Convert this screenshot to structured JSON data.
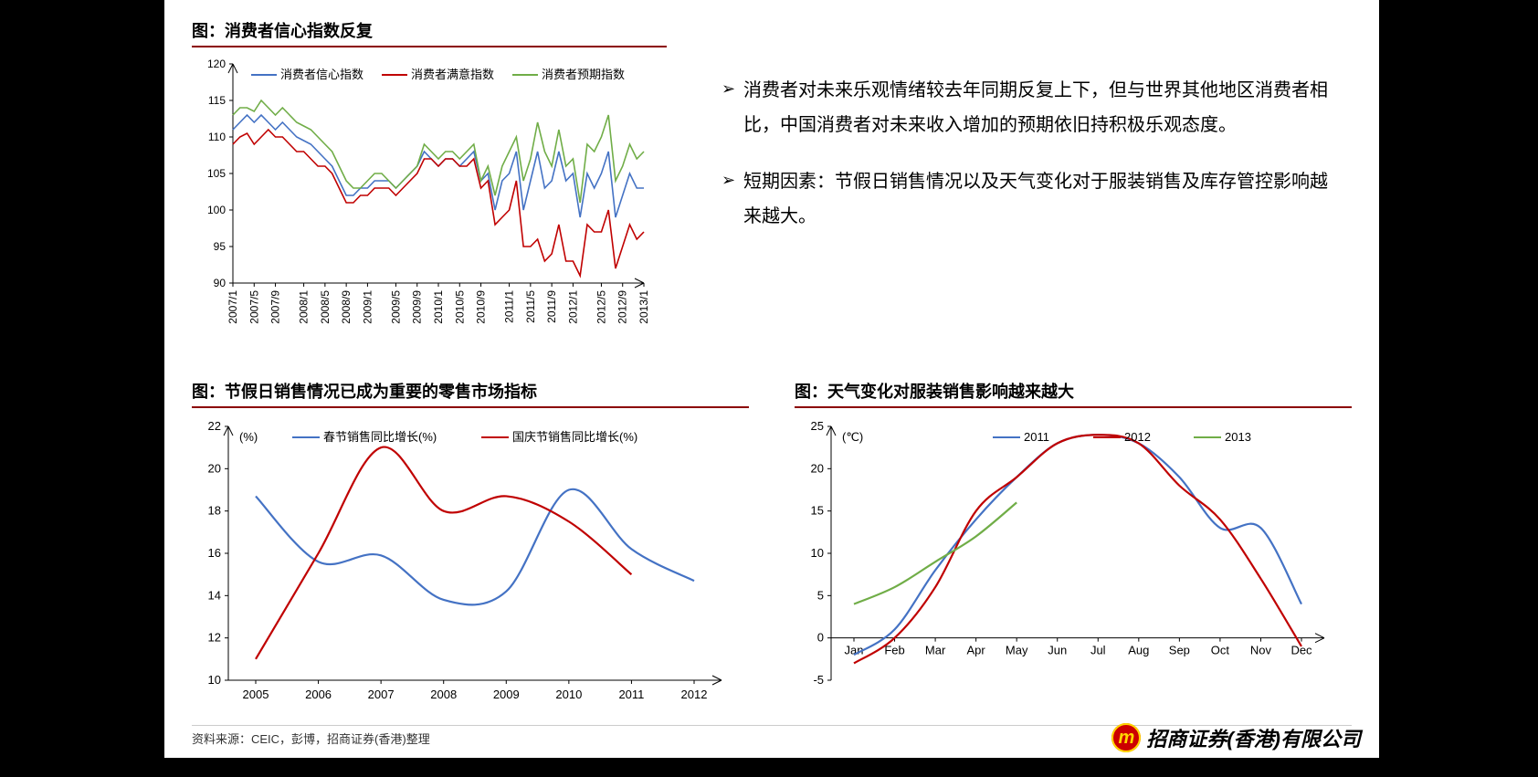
{
  "chart1": {
    "title": "图：消费者信心指数反复",
    "type": "line",
    "ylim": [
      90,
      120
    ],
    "ytick_step": 5,
    "x_labels": [
      "2007/1",
      "2007/5",
      "2007/9",
      "2008/1",
      "2008/5",
      "2008/9",
      "2009/1",
      "2009/5",
      "2009/9",
      "2010/1",
      "2010/5",
      "2010/9",
      "2011/1",
      "2011/5",
      "2011/9",
      "2012/1",
      "2012/5",
      "2012/9",
      "2013/1"
    ],
    "legend": [
      {
        "label": "消费者信心指数",
        "color": "#4472c4"
      },
      {
        "label": "消费者满意指数",
        "color": "#c00000"
      },
      {
        "label": "消费者预期指数",
        "color": "#70ad47"
      }
    ],
    "series": {
      "confidence": [
        111,
        112,
        113,
        112,
        113,
        112,
        111,
        112,
        111,
        110,
        109.5,
        109,
        108,
        107,
        106,
        104,
        102,
        102,
        103,
        103,
        104,
        104,
        104,
        103,
        104,
        105,
        106,
        108,
        107,
        106,
        107,
        107,
        106,
        107,
        108,
        104,
        105,
        100,
        104,
        105,
        108,
        100,
        104,
        108,
        103,
        104,
        108,
        104,
        105,
        99,
        105,
        103,
        105,
        108,
        99,
        102,
        105,
        103,
        103
      ],
      "satisfaction": [
        109,
        110,
        110.5,
        109,
        110,
        111,
        110,
        110,
        109,
        108,
        108,
        107,
        106,
        106,
        105,
        103,
        101,
        101,
        102,
        102,
        103,
        103,
        103,
        102,
        103,
        104,
        105,
        107,
        107,
        106,
        107,
        107,
        106,
        106,
        107,
        103,
        104,
        98,
        99,
        100,
        104,
        95,
        95,
        96,
        93,
        94,
        98,
        93,
        93,
        91,
        98,
        97,
        97,
        100,
        92,
        95,
        98,
        96,
        97
      ],
      "expectation": [
        113,
        114,
        114,
        113.5,
        115,
        114,
        113,
        114,
        113,
        112,
        111.5,
        111,
        110,
        109,
        108,
        106,
        104,
        103,
        103,
        104,
        105,
        105,
        104,
        103,
        104,
        105,
        106,
        109,
        108,
        107,
        108,
        108,
        107,
        108,
        109,
        104,
        106,
        102,
        106,
        108,
        110,
        104,
        107,
        112,
        108,
        106,
        111,
        106,
        107,
        101,
        109,
        108,
        110,
        113,
        104,
        106,
        109,
        107,
        108
      ]
    },
    "line_width": 1.6,
    "grid_color": "#d0d0d0",
    "axis_color": "#000",
    "label_fontsize": 12,
    "x_rotation": -90
  },
  "chart2": {
    "title": "图：节假日销售情况已成为重要的零售市场指标",
    "type": "line-smooth",
    "ylabel": "(%)",
    "ylim": [
      10,
      22
    ],
    "ytick_step": 2,
    "x_labels": [
      "2005",
      "2006",
      "2007",
      "2008",
      "2009",
      "2010",
      "2011",
      "2012"
    ],
    "legend": [
      {
        "label": "春节销售同比增长(%)",
        "color": "#4472c4"
      },
      {
        "label": "国庆节销售同比增长(%)",
        "color": "#c00000"
      }
    ],
    "series": {
      "spring": [
        18.7,
        15.6,
        15.9,
        13.8,
        14.2,
        19.0,
        16.2,
        14.7
      ],
      "national": [
        11.0,
        16.0,
        21.0,
        18.0,
        18.7,
        17.5,
        15.0,
        null
      ]
    },
    "line_width": 2.2,
    "axis_color": "#000",
    "label_fontsize": 13
  },
  "chart3": {
    "title": "图：天气变化对服装销售影响越来越大",
    "type": "line-smooth",
    "ylabel": "(℃)",
    "ylim": [
      -5,
      25
    ],
    "ytick_step": 5,
    "x_labels": [
      "Jan",
      "Feb",
      "Mar",
      "Apr",
      "May",
      "Jun",
      "Jul",
      "Aug",
      "Sep",
      "Oct",
      "Nov",
      "Dec"
    ],
    "legend": [
      {
        "label": "2011",
        "color": "#4472c4"
      },
      {
        "label": "2012",
        "color": "#c00000"
      },
      {
        "label": "2013",
        "color": "#70ad47"
      }
    ],
    "series": {
      "y2011": [
        -2,
        1,
        8,
        14,
        19,
        23,
        24,
        23,
        19,
        13,
        13,
        4
      ],
      "y2012": [
        -3,
        0,
        6,
        15,
        19,
        23,
        24,
        23,
        18,
        14,
        7,
        -1
      ],
      "y2013": [
        4,
        6,
        9,
        12,
        16,
        null,
        null,
        null,
        null,
        null,
        null,
        null
      ]
    },
    "line_width": 2.2,
    "axis_color": "#000",
    "label_fontsize": 13
  },
  "commentary": {
    "p1": "消费者对未来乐观情绪较去年同期反复上下，但与世界其他地区消费者相比，中国消费者对未来收入增加的预期依旧持积极乐观态度。",
    "p2": "短期因素：节假日销售情况以及天气变化对于服装销售及库存管控影响越来越大。"
  },
  "source": "资料来源：CEIC，彭博，招商证券(香港)整理",
  "logo_text": "招商证券(香港)有限公司",
  "colors": {
    "title_rule": "#8b0000",
    "bg": "#ffffff"
  }
}
